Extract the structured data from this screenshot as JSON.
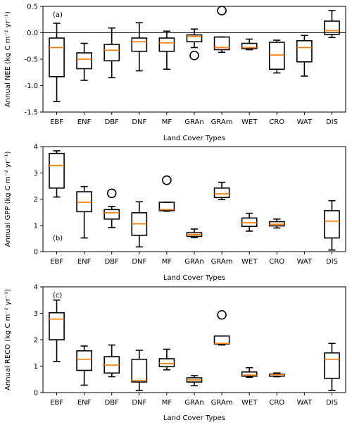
{
  "chart_data": [
    {
      "type": "box",
      "panel_label": "(a)",
      "xlabel": "Land Cover Types",
      "ylabel": "Annual NEE (kg C m⁻² yr⁻¹)",
      "ylim": [
        -1.5,
        0.5
      ],
      "yticks": [
        "-1.5",
        "-1.0",
        "-0.5",
        "0.0",
        "0.5"
      ],
      "zero_line": true,
      "categories": [
        "EBF",
        "ENF",
        "DBF",
        "DNF",
        "MF",
        "GRAn",
        "GRAm",
        "WET",
        "CRO",
        "WAT",
        "DIS"
      ],
      "boxes": [
        {
          "category": "EBF",
          "whislo": -1.3,
          "q1": -0.83,
          "med": -0.28,
          "q3": -0.1,
          "whishi": 0.18,
          "fliers": []
        },
        {
          "category": "ENF",
          "whislo": -0.9,
          "q1": -0.68,
          "med": -0.5,
          "q3": -0.38,
          "whishi": -0.2,
          "fliers": []
        },
        {
          "category": "DBF",
          "whislo": -0.85,
          "q1": -0.53,
          "med": -0.33,
          "q3": -0.22,
          "whishi": 0.09,
          "fliers": []
        },
        {
          "category": "DNF",
          "whislo": -0.72,
          "q1": -0.35,
          "med": -0.17,
          "q3": -0.1,
          "whishi": 0.19,
          "fliers": []
        },
        {
          "category": "MF",
          "whislo": -0.69,
          "q1": -0.35,
          "med": -0.19,
          "q3": -0.1,
          "whishi": 0.03,
          "fliers": []
        },
        {
          "category": "GRAn",
          "whislo": -0.28,
          "q1": -0.17,
          "med": -0.07,
          "q3": -0.04,
          "whishi": 0.07,
          "fliers": [
            -0.43
          ]
        },
        {
          "category": "GRAm",
          "whislo": -0.37,
          "q1": -0.32,
          "med": -0.28,
          "q3": -0.08,
          "whishi": -0.08,
          "fliers": [
            0.42
          ]
        },
        {
          "category": "WET",
          "whislo": -0.32,
          "q1": -0.3,
          "med": -0.28,
          "q3": -0.2,
          "whishi": -0.12,
          "fliers": []
        },
        {
          "category": "CRO",
          "whislo": -0.76,
          "q1": -0.69,
          "med": -0.42,
          "q3": -0.18,
          "whishi": -0.14,
          "fliers": []
        },
        {
          "category": "WAT",
          "whislo": -0.82,
          "q1": -0.55,
          "med": -0.28,
          "q3": -0.15,
          "whishi": -0.05,
          "fliers": []
        },
        {
          "category": "DIS",
          "whislo": -0.09,
          "q1": -0.03,
          "med": 0.04,
          "q3": 0.22,
          "whishi": 0.42,
          "fliers": []
        }
      ]
    },
    {
      "type": "box",
      "panel_label": "(b)",
      "xlabel": "Land Cover Types",
      "ylabel": "Annual GPP (kg C m⁻² yr⁻¹)",
      "ylim": [
        0,
        4
      ],
      "yticks": [
        "0",
        "1",
        "2",
        "3",
        "4"
      ],
      "zero_line": false,
      "categories": [
        "EBF",
        "ENF",
        "DBF",
        "DNF",
        "MF",
        "GRAn",
        "GRAm",
        "WET",
        "CRO",
        "WAT",
        "DIS"
      ],
      "boxes": [
        {
          "category": "EBF",
          "whislo": 2.08,
          "q1": 2.42,
          "med": 3.28,
          "q3": 3.74,
          "whishi": 3.84,
          "fliers": []
        },
        {
          "category": "ENF",
          "whislo": 0.52,
          "q1": 1.52,
          "med": 1.88,
          "q3": 2.28,
          "whishi": 2.48,
          "fliers": []
        },
        {
          "category": "DBF",
          "whislo": 0.92,
          "q1": 1.24,
          "med": 1.48,
          "q3": 1.6,
          "whishi": 1.72,
          "fliers": [
            2.22
          ]
        },
        {
          "category": "DNF",
          "whislo": 0.18,
          "q1": 0.62,
          "med": 1.06,
          "q3": 1.48,
          "whishi": 1.9,
          "fliers": []
        },
        {
          "category": "MF",
          "whislo": 1.54,
          "q1": 1.56,
          "med": 1.6,
          "q3": 1.88,
          "whishi": 1.88,
          "fliers": [
            2.72
          ]
        },
        {
          "category": "GRAn",
          "whislo": 0.53,
          "q1": 0.58,
          "med": 0.65,
          "q3": 0.72,
          "whishi": 0.86,
          "fliers": []
        },
        {
          "category": "GRAm",
          "whislo": 1.98,
          "q1": 2.06,
          "med": 2.2,
          "q3": 2.42,
          "whishi": 2.64,
          "fliers": []
        },
        {
          "category": "WET",
          "whislo": 0.78,
          "q1": 0.96,
          "med": 1.1,
          "q3": 1.28,
          "whishi": 1.46,
          "fliers": []
        },
        {
          "category": "CRO",
          "whislo": 0.9,
          "q1": 0.98,
          "med": 1.04,
          "q3": 1.14,
          "whishi": 1.24,
          "fliers": []
        },
        {
          "category": "WAT",
          "whislo": null,
          "q1": null,
          "med": null,
          "q3": null,
          "whishi": null,
          "fliers": []
        },
        {
          "category": "DIS",
          "whislo": 0.06,
          "q1": 0.52,
          "med": 1.16,
          "q3": 1.56,
          "whishi": 1.94,
          "fliers": []
        }
      ]
    },
    {
      "type": "box",
      "panel_label": "(c)",
      "xlabel": "Land Cover Types",
      "ylabel": "Annual RECO (kg C m⁻² yr⁻¹)",
      "ylim": [
        0,
        4
      ],
      "yticks": [
        "0",
        "1",
        "2",
        "3",
        "4"
      ],
      "zero_line": false,
      "categories": [
        "EBF",
        "ENF",
        "DBF",
        "DNF",
        "MF",
        "GRAn",
        "GRAm",
        "WET",
        "CRO",
        "WAT",
        "DIS"
      ],
      "boxes": [
        {
          "category": "EBF",
          "whislo": 1.18,
          "q1": 2.0,
          "med": 2.78,
          "q3": 3.02,
          "whishi": 3.5,
          "fliers": []
        },
        {
          "category": "ENF",
          "whislo": 0.28,
          "q1": 0.84,
          "med": 1.26,
          "q3": 1.58,
          "whishi": 1.76,
          "fliers": []
        },
        {
          "category": "DBF",
          "whislo": 0.6,
          "q1": 0.74,
          "med": 1.04,
          "q3": 1.36,
          "whishi": 1.8,
          "fliers": []
        },
        {
          "category": "DNF",
          "whislo": 0.08,
          "q1": 0.4,
          "med": 0.46,
          "q3": 1.26,
          "whishi": 1.6,
          "fliers": []
        },
        {
          "category": "MF",
          "whislo": 0.86,
          "q1": 0.98,
          "med": 1.1,
          "q3": 1.28,
          "whishi": 1.64,
          "fliers": []
        },
        {
          "category": "GRAn",
          "whislo": 0.26,
          "q1": 0.4,
          "med": 0.48,
          "q3": 0.56,
          "whishi": 0.64,
          "fliers": []
        },
        {
          "category": "GRAm",
          "whislo": 1.8,
          "q1": 1.84,
          "med": 1.86,
          "q3": 2.14,
          "whishi": 2.14,
          "fliers": [
            2.94
          ]
        },
        {
          "category": "WET",
          "whislo": 0.58,
          "q1": 0.62,
          "med": 0.66,
          "q3": 0.78,
          "whishi": 0.94,
          "fliers": []
        },
        {
          "category": "CRO",
          "whislo": 0.6,
          "q1": 0.62,
          "med": 0.68,
          "q3": 0.7,
          "whishi": 0.74,
          "fliers": []
        },
        {
          "category": "WAT",
          "whislo": null,
          "q1": null,
          "med": null,
          "q3": null,
          "whishi": null,
          "fliers": []
        },
        {
          "category": "DIS",
          "whislo": 0.08,
          "q1": 0.54,
          "med": 1.26,
          "q3": 1.5,
          "whishi": 1.86,
          "fliers": []
        }
      ]
    }
  ],
  "style": {
    "box_color": "#000000",
    "median_color": "#ff7f0e",
    "zero_line_color": "#000000",
    "background": "#ffffff"
  }
}
